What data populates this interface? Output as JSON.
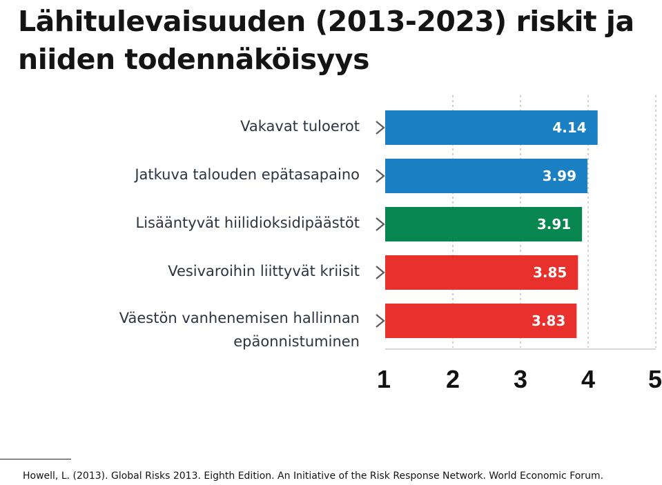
{
  "title": "Lähitulevaisuuden (2013-2023) riskit ja niiden todennäköisyys",
  "chart_data": {
    "type": "bar",
    "orientation": "horizontal",
    "categories": [
      "Vakavat tuloerot",
      "Jatkuva talouden epätasapaino",
      "Lisääntyvät hiilidioksidipäästöt",
      "Vesivaroihin liittyvät kriisit",
      "Väestön vanhenemisen hallinnan epäonnistuminen"
    ],
    "values": [
      4.14,
      3.99,
      3.91,
      3.85,
      3.83
    ],
    "value_labels": [
      "4.14",
      "3.99",
      "3.91",
      "3.85",
      "3.83"
    ],
    "bar_colors": [
      "#1b7fc4",
      "#1b7fc4",
      "#07874f",
      "#e8302c",
      "#e8302c"
    ],
    "xlim": [
      1,
      5
    ],
    "xticks": [
      "1",
      "2",
      "3",
      "4",
      "5"
    ],
    "grid": true
  },
  "colors": {
    "economic": "#1b7fc4",
    "environmental": "#07874f",
    "societal": "#e8302c"
  },
  "source": "Howell, L. (2013).  Global Risks 2013. Eighth Edition. An Initiative of the Risk Response Network. World Economic Forum."
}
